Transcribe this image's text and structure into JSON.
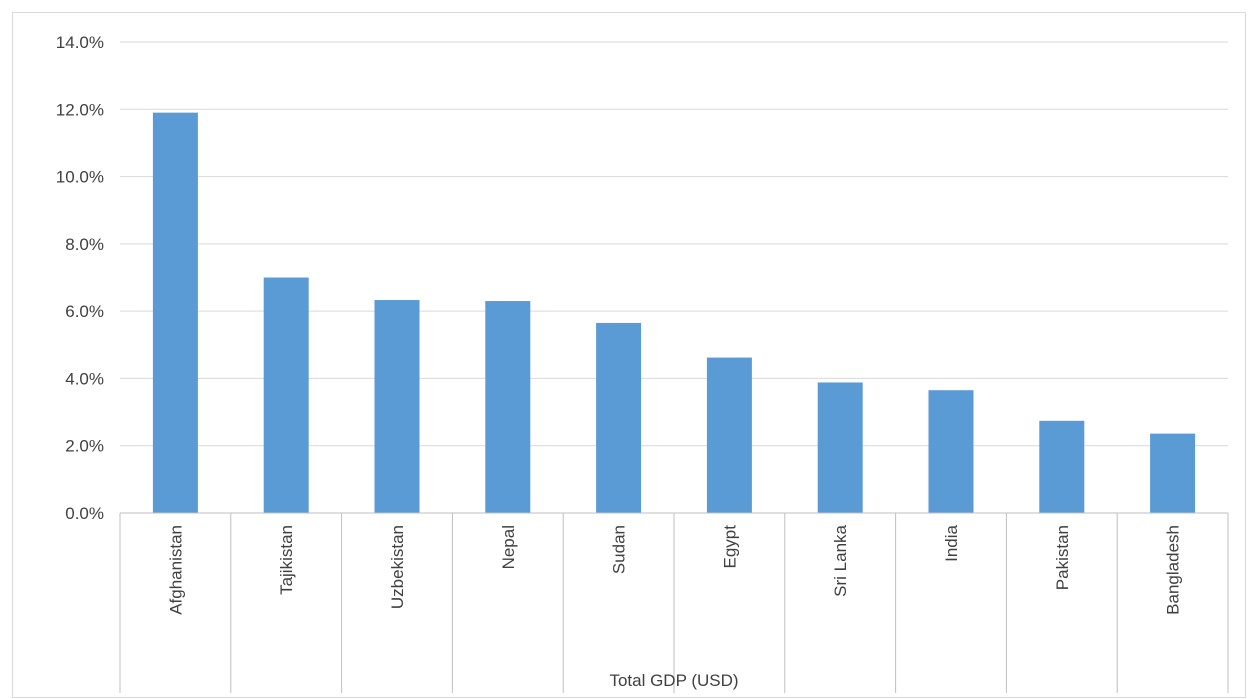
{
  "chart_data": {
    "type": "bar",
    "title": "",
    "xlabel": "Total GDP (USD)",
    "ylabel": "",
    "categories": [
      "Afghanistan",
      "Tajikistan",
      "Uzbekistan",
      "Nepal",
      "Sudan",
      "Egypt",
      "Sri Lanka",
      "India",
      "Pakistan",
      "Bangladesh"
    ],
    "values": [
      11.9,
      7.0,
      6.33,
      6.3,
      5.65,
      4.62,
      3.88,
      3.65,
      2.74,
      2.36
    ],
    "ylim": [
      0,
      14
    ],
    "y_ticks": [
      0,
      2,
      4,
      6,
      8,
      10,
      12,
      14
    ],
    "y_tick_format": "percent_1dp",
    "grid": true,
    "legend": "none",
    "bar_color": "#5B9BD5",
    "grid_color": "#d9d9d9",
    "axis_color": "#bfbfbf",
    "text_color": "#404040"
  }
}
